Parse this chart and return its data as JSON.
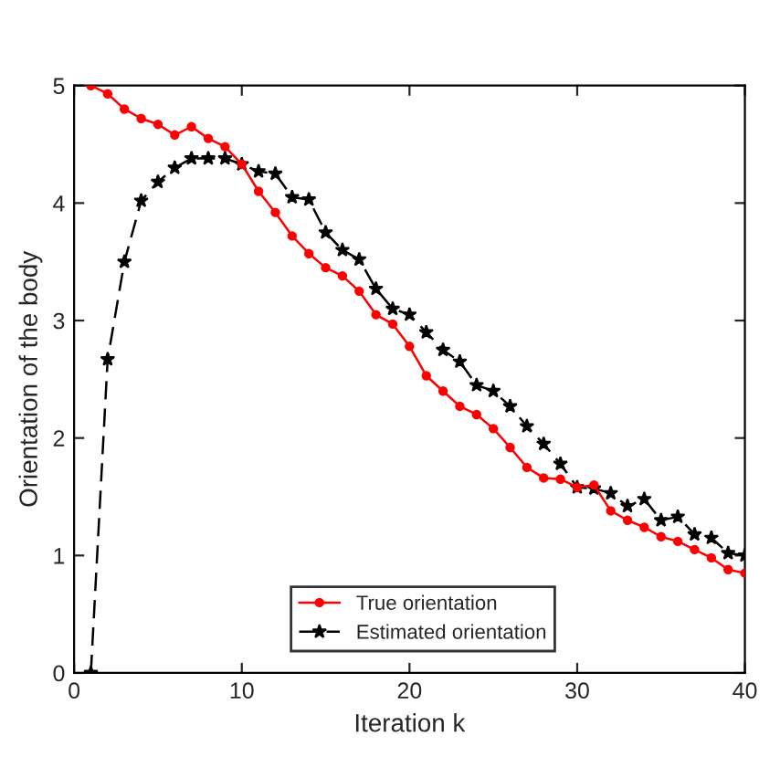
{
  "chart_data": {
    "type": "line",
    "xlabel": "Iteration k",
    "ylabel": "Orientation of the body",
    "x": [
      1,
      2,
      3,
      4,
      5,
      6,
      7,
      8,
      9,
      10,
      11,
      12,
      13,
      14,
      15,
      16,
      17,
      18,
      19,
      20,
      21,
      22,
      23,
      24,
      25,
      26,
      27,
      28,
      29,
      30,
      31,
      32,
      33,
      34,
      35,
      36,
      37,
      38,
      39,
      40
    ],
    "series": [
      {
        "name": "True orientation",
        "color": "#ff0000",
        "marker": "circle",
        "line_style": "solid",
        "values": [
          5.0,
          4.93,
          4.8,
          4.72,
          4.67,
          4.58,
          4.65,
          4.55,
          4.48,
          4.33,
          4.1,
          3.92,
          3.72,
          3.57,
          3.45,
          3.38,
          3.25,
          3.05,
          2.97,
          2.78,
          2.53,
          2.4,
          2.27,
          2.2,
          2.08,
          1.92,
          1.75,
          1.66,
          1.65,
          1.58,
          1.6,
          1.38,
          1.3,
          1.24,
          1.16,
          1.12,
          1.05,
          0.98,
          0.88,
          0.85
        ]
      },
      {
        "name": "Estimated orientation",
        "color": "#000000",
        "marker": "star",
        "line_style": "dashed",
        "values": [
          0,
          2.67,
          3.5,
          4.02,
          4.18,
          4.3,
          4.38,
          4.38,
          4.38,
          4.33,
          4.27,
          4.25,
          4.05,
          4.03,
          3.75,
          3.6,
          3.52,
          3.27,
          3.1,
          3.05,
          2.9,
          2.75,
          2.65,
          2.45,
          2.4,
          2.27,
          2.1,
          1.95,
          1.78,
          1.58,
          1.57,
          1.53,
          1.42,
          1.48,
          1.3,
          1.33,
          1.18,
          1.15,
          1.02,
          1.0
        ]
      }
    ],
    "xlim": [
      0,
      40
    ],
    "xticks": [
      0,
      10,
      20,
      30,
      40
    ],
    "ylim": [
      0,
      5
    ],
    "yticks": [
      0,
      1,
      2,
      3,
      4,
      5
    ],
    "grid": false,
    "legend": "bottom"
  }
}
